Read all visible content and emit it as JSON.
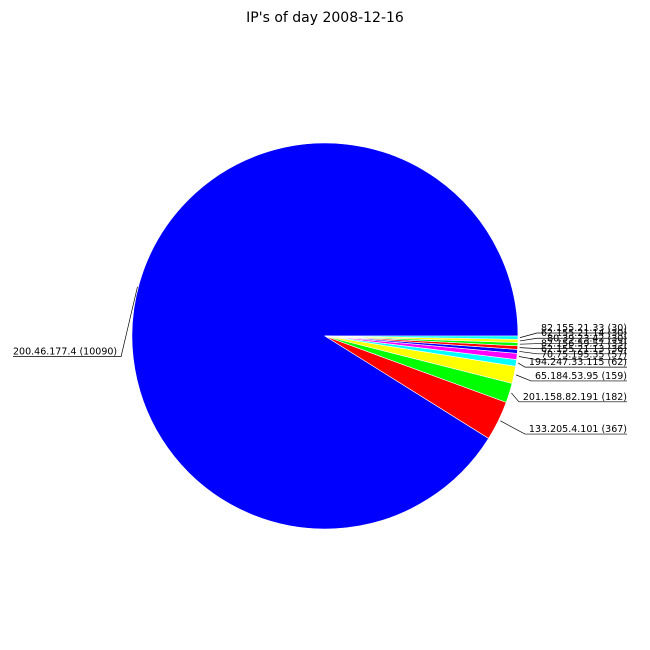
{
  "chart_data": {
    "type": "pie",
    "title": "IP's of day 2008-12-16",
    "start_angle_deg": 0,
    "direction": "counterclockwise",
    "slices": [
      {
        "label": "200.46.177.4 (10090)",
        "value": 10090,
        "color": "#0000ff"
      },
      {
        "label": "133.205.4.101 (367)",
        "value": 367,
        "color": "#ff0000"
      },
      {
        "label": "201.158.82.191 (182)",
        "value": 182,
        "color": "#00ff00"
      },
      {
        "label": "65.184.53.95 (159)",
        "value": 159,
        "color": "#ffff00"
      },
      {
        "label": "194.247.33.115 (62)",
        "value": 62,
        "color": "#00ffff"
      },
      {
        "label": "70.75.195.35 (57)",
        "value": 57,
        "color": "#ff00ff"
      },
      {
        "label": "62.155.21.13 (36)",
        "value": 36,
        "color": "#0000ff"
      },
      {
        "label": "82.156.59.57 (33)",
        "value": 33,
        "color": "#ff0000"
      },
      {
        "label": "80.39.23.42 (30)",
        "value": 30,
        "color": "#00ff00"
      },
      {
        "label": "62.155.21.14 (30)",
        "value": 30,
        "color": "#ffff00"
      },
      {
        "label": "82.155.21.33 (30)",
        "value": 30,
        "color": "#00ffff"
      }
    ]
  }
}
